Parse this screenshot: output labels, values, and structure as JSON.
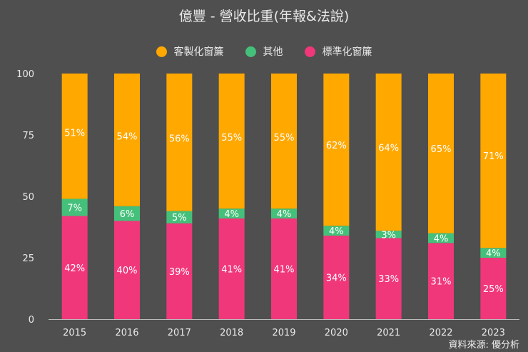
{
  "chart_data": {
    "type": "bar",
    "stacked": true,
    "title": "億豐 - 營收比重(年報&法說)",
    "categories": [
      "2015",
      "2016",
      "2017",
      "2018",
      "2019",
      "2020",
      "2021",
      "2022",
      "2023"
    ],
    "series": [
      {
        "name": "標準化窗簾",
        "color": "#f0377a",
        "values": [
          42,
          40,
          39,
          41,
          41,
          34,
          33,
          31,
          25
        ]
      },
      {
        "name": "其他",
        "color": "#45c07a",
        "values": [
          7,
          6,
          5,
          4,
          4,
          4,
          3,
          4,
          4
        ]
      },
      {
        "name": "客製化窗簾",
        "color": "#ffa800",
        "values": [
          51,
          54,
          56,
          55,
          55,
          62,
          64,
          65,
          71
        ]
      }
    ],
    "legend_order": [
      "客製化窗簾",
      "其他",
      "標準化窗簾"
    ],
    "legend_position": "top",
    "ylim": [
      0,
      100
    ],
    "yticks": [
      0,
      25,
      50,
      75,
      100
    ],
    "grid": false,
    "source": "資料來源: 優分析"
  }
}
